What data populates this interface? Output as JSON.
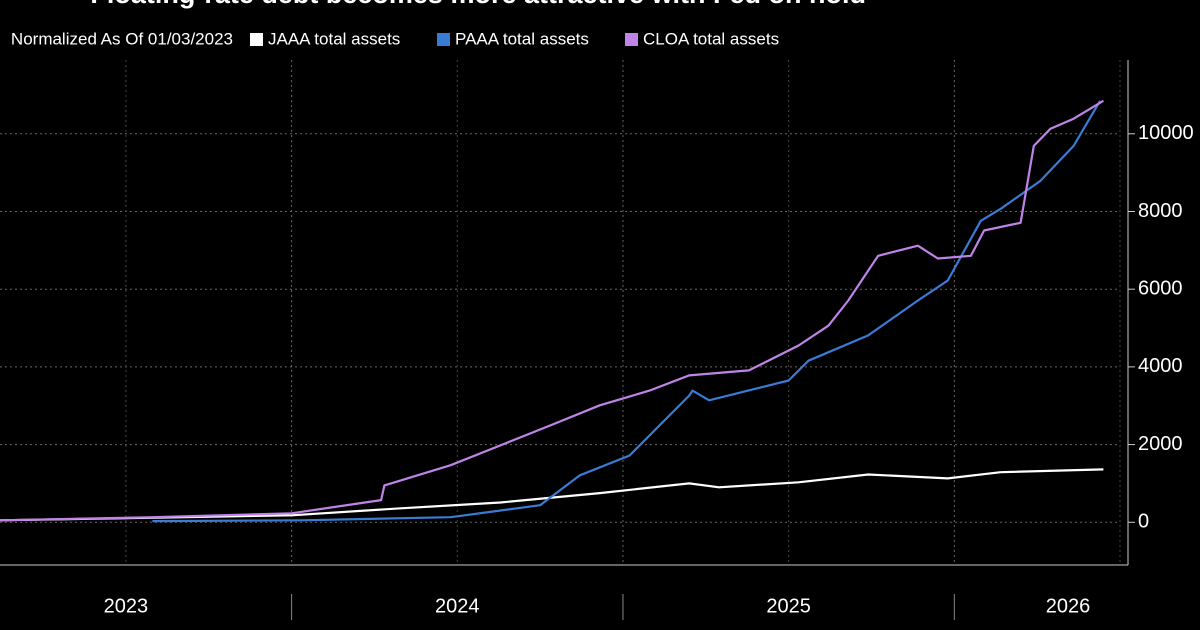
{
  "chart_data": {
    "type": "line",
    "title": "Floating-rate debt becomes more attractive with Fed on hold",
    "subtitle": "Normalized As Of 01/03/2023",
    "series": [
      {
        "name": "JAAA total assets",
        "color": "#ffffff",
        "x": [
          2023.12,
          2024.0,
          2024.33,
          2024.63,
          2024.93,
          2025.2,
          2025.29,
          2025.53,
          2025.74,
          2025.98,
          2026.14,
          2026.45
        ],
        "values": [
          50,
          180,
          360,
          510,
          750,
          1000,
          900,
          1030,
          1230,
          1130,
          1290,
          1360
        ]
      },
      {
        "name": "PAAA total assets",
        "color": "#3a7bd5",
        "x": [
          2023.58,
          2024.03,
          2024.48,
          2024.75,
          2024.87,
          2025.02,
          2025.2,
          2025.21,
          2025.26,
          2025.5,
          2025.56,
          2025.74,
          2025.89,
          2025.98,
          2026.08,
          2026.14,
          2026.26,
          2026.36,
          2026.44
        ],
        "values": [
          30,
          50,
          130,
          440,
          1210,
          1720,
          3260,
          3390,
          3140,
          3650,
          4160,
          4810,
          5710,
          6220,
          7760,
          8070,
          8790,
          9690,
          10850
        ]
      },
      {
        "name": "CLOA total assets",
        "color": "#c084e8",
        "x": [
          2023.12,
          2023.58,
          2024.0,
          2024.27,
          2024.28,
          2024.48,
          2024.63,
          2024.78,
          2024.93,
          2025.08,
          2025.2,
          2025.38,
          2025.53,
          2025.62,
          2025.68,
          2025.77,
          2025.89,
          2025.95,
          2026.05,
          2026.09,
          2026.2,
          2026.24,
          2026.29,
          2026.36,
          2026.45
        ],
        "values": [
          50,
          130,
          230,
          570,
          950,
          1470,
          1980,
          2490,
          3010,
          3390,
          3780,
          3910,
          4550,
          5060,
          5710,
          6860,
          7120,
          6790,
          6860,
          7510,
          7710,
          9690,
          10130,
          10390,
          10850
        ]
      }
    ],
    "xlim": [
      2023.12,
      2026.5
    ],
    "xticks": [
      {
        "value": 2023.5,
        "label": "2023"
      },
      {
        "value": 2024.5,
        "label": "2024"
      },
      {
        "value": 2025.5,
        "label": "2025"
      },
      {
        "value": 2026.5,
        "label": "2026"
      }
    ],
    "ylim": [
      -1100,
      11900
    ],
    "yticks": [
      0,
      2000,
      4000,
      6000,
      8000,
      10000
    ],
    "grid": true
  }
}
